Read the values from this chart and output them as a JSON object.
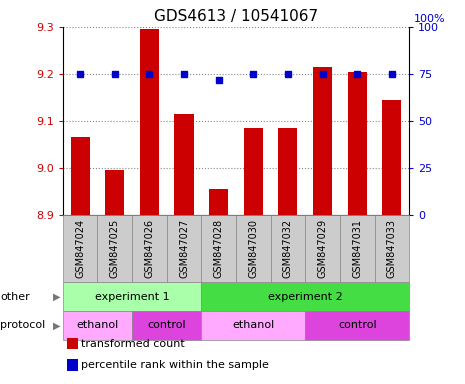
{
  "title": "GDS4613 / 10541067",
  "samples": [
    "GSM847024",
    "GSM847025",
    "GSM847026",
    "GSM847027",
    "GSM847028",
    "GSM847030",
    "GSM847032",
    "GSM847029",
    "GSM847031",
    "GSM847033"
  ],
  "bar_values": [
    9.065,
    8.995,
    9.295,
    9.115,
    8.955,
    9.085,
    9.085,
    9.215,
    9.205,
    9.145
  ],
  "dot_values": [
    75,
    75,
    75,
    75,
    72,
    75,
    75,
    75,
    75,
    75
  ],
  "ylim": [
    8.9,
    9.3
  ],
  "y2lim": [
    0,
    100
  ],
  "yticks": [
    8.9,
    9.0,
    9.1,
    9.2,
    9.3
  ],
  "y2ticks": [
    0,
    25,
    50,
    75,
    100
  ],
  "bar_color": "#cc0000",
  "dot_color": "#0000cc",
  "grid_color": "#888888",
  "sample_bg_color": "#cccccc",
  "sample_border_color": "#888888",
  "label_row1": [
    {
      "label": "experiment 1",
      "start": 0,
      "end": 4,
      "color": "#aaffaa"
    },
    {
      "label": "experiment 2",
      "start": 4,
      "end": 10,
      "color": "#44dd44"
    }
  ],
  "label_row2": [
    {
      "label": "ethanol",
      "start": 0,
      "end": 2,
      "color": "#ffaaff"
    },
    {
      "label": "control",
      "start": 2,
      "end": 4,
      "color": "#dd44dd"
    },
    {
      "label": "ethanol",
      "start": 4,
      "end": 7,
      "color": "#ffaaff"
    },
    {
      "label": "control",
      "start": 7,
      "end": 10,
      "color": "#dd44dd"
    }
  ],
  "row_labels": [
    "other",
    "protocol"
  ],
  "legend_items": [
    {
      "color": "#cc0000",
      "label": "transformed count"
    },
    {
      "color": "#0000cc",
      "label": "percentile rank within the sample"
    }
  ],
  "fig_width": 4.65,
  "fig_height": 3.84,
  "title_fontsize": 11,
  "axis_fontsize": 8,
  "sample_fontsize": 7,
  "annotation_fontsize": 8
}
